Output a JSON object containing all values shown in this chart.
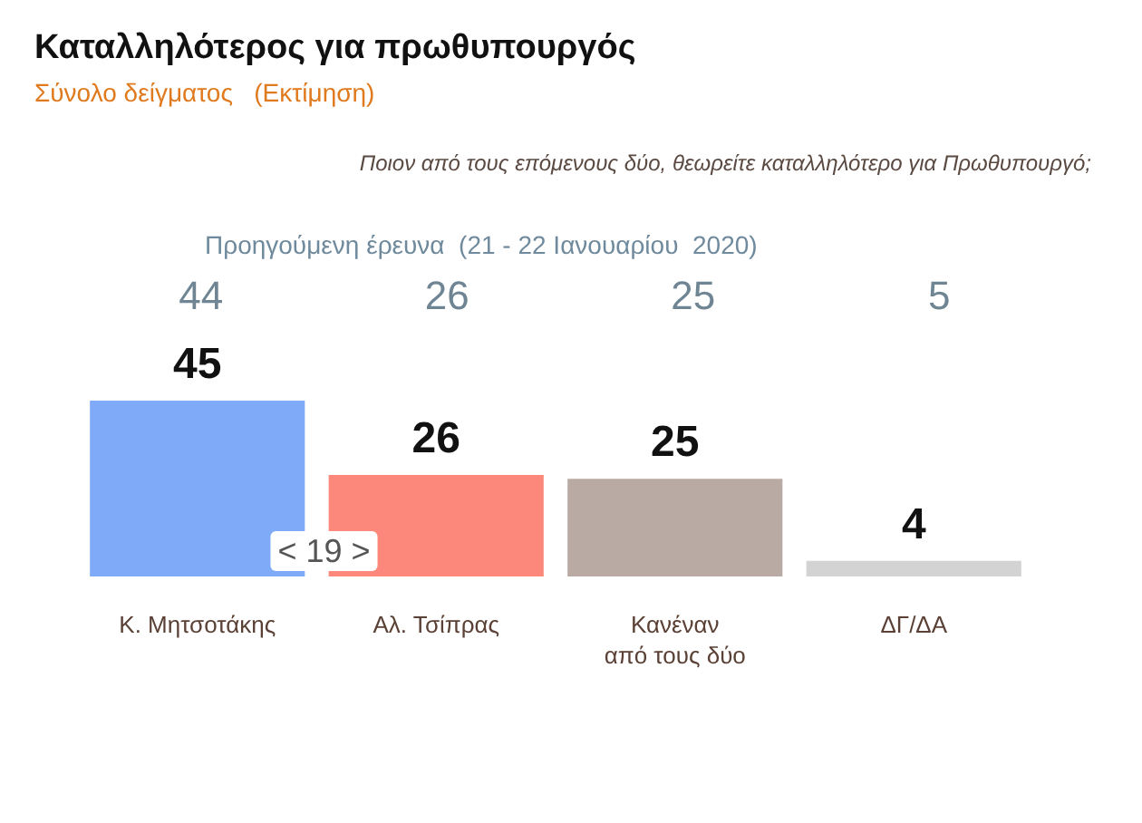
{
  "chart_data": {
    "type": "bar",
    "title": "Καταλληλότερος για πρωθυπουργός",
    "subtitle": "Σύνολο δείγματος   (Εκτίμηση)",
    "categories": [
      "Κ. Μητσοτάκης",
      "Αλ. Τσίπρας",
      "Κανέναν\nαπό τους δύο",
      "ΔΓ/ΔΑ"
    ],
    "values": [
      45,
      26,
      25,
      4
    ],
    "colors": [
      "#7eaaf7",
      "#fb887a",
      "#b9aba3",
      "#d3d3d3"
    ],
    "data_labels": true,
    "annotations": [
      "Ποιον από τους επόμενους δύο, θεωρείτε καταλληλότερο για Πρωθυπουργό;",
      "Προηγούμενη έρευνα  (21 - 22 Ιανουαρίου  2020)",
      "< 19 >",
      "44",
      "26",
      "25",
      "5"
    ]
  }
}
